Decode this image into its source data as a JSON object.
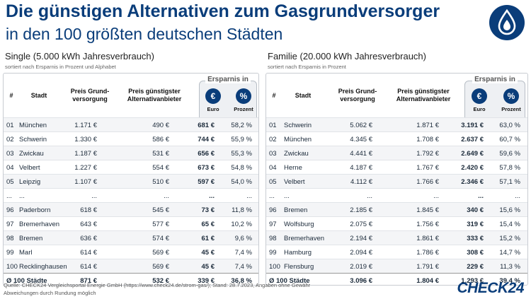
{
  "title_line1": "Die günstigen Alternativen zum Gasgrundversorger",
  "title_line2": "in den 100 größten deutschen Städten",
  "left": {
    "heading": "Single (5.000 kWh Jahresverbrauch)",
    "subheading": "sortiert nach Ersparnis in Prozent und Alphabet",
    "cols": {
      "num": "#",
      "city": "Stadt",
      "grund": "Preis Grund-\nversorgung",
      "alt": "Preis günstigster\nAlternativanbieter",
      "ersparnis": "Ersparnis in",
      "euro": "Euro",
      "prozent": "Prozent"
    },
    "rows": [
      [
        "01",
        "München",
        "1.171 €",
        "490 €",
        "681 €",
        "58,2 %"
      ],
      [
        "02",
        "Schwerin",
        "1.330 €",
        "586 €",
        "744 €",
        "55,9 %"
      ],
      [
        "03",
        "Zwickau",
        "1.187 €",
        "531 €",
        "656 €",
        "55,3 %"
      ],
      [
        "04",
        "Velbert",
        "1.227 €",
        "554 €",
        "673 €",
        "54,8 %"
      ],
      [
        "05",
        "Leipzig",
        "1.107 €",
        "510 €",
        "597 €",
        "54,0 %"
      ],
      [
        "...",
        "...",
        "...",
        "...",
        "...",
        "..."
      ],
      [
        "96",
        "Paderborn",
        "618 €",
        "545 €",
        "73 €",
        "11,8 %"
      ],
      [
        "97",
        "Bremerhaven",
        "643 €",
        "577 €",
        "65 €",
        "10,2 %"
      ],
      [
        "98",
        "Bremen",
        "636 €",
        "574 €",
        "61 €",
        "9,6 %"
      ],
      [
        "99",
        "Marl",
        "614 €",
        "569 €",
        "45 €",
        "7,4 %"
      ],
      [
        "100",
        "Recklinghausen",
        "614 €",
        "569 €",
        "45 €",
        "7,4 %"
      ],
      [
        "Ø 100 Städte",
        "",
        "871 €",
        "532 €",
        "339 €",
        "36,8 %"
      ]
    ]
  },
  "right": {
    "heading": "Familie (20.000 kWh Jahresverbrauch)",
    "subheading": "sortiert nach Ersparnis in Prozent",
    "cols": {
      "num": "#",
      "city": "Stadt",
      "grund": "Preis Grund-\nversorgung",
      "alt": "Preis günstigster\nAlternativanbieter",
      "ersparnis": "Ersparnis in",
      "euro": "Euro",
      "prozent": "Prozent"
    },
    "rows": [
      [
        "01",
        "Schwerin",
        "5.062 €",
        "1.871 €",
        "3.191 €",
        "63,0 %"
      ],
      [
        "02",
        "München",
        "4.345 €",
        "1.708 €",
        "2.637 €",
        "60,7 %"
      ],
      [
        "03",
        "Zwickau",
        "4.441 €",
        "1.792 €",
        "2.649 €",
        "59,6 %"
      ],
      [
        "04",
        "Herne",
        "4.187 €",
        "1.767 €",
        "2.420 €",
        "57,8 %"
      ],
      [
        "05",
        "Velbert",
        "4.112 €",
        "1.766 €",
        "2.346 €",
        "57,1 %"
      ],
      [
        "...",
        "...",
        "...",
        "...",
        "...",
        "..."
      ],
      [
        "96",
        "Bremen",
        "2.185 €",
        "1.845 €",
        "340 €",
        "15,6 %"
      ],
      [
        "97",
        "Wolfsburg",
        "2.075 €",
        "1.756 €",
        "319 €",
        "15,4 %"
      ],
      [
        "98",
        "Bremerhaven",
        "2.194 €",
        "1.861 €",
        "333 €",
        "15,2 %"
      ],
      [
        "99",
        "Hamburg",
        "2.094 €",
        "1.786 €",
        "308 €",
        "14,7 %"
      ],
      [
        "100",
        "Flensburg",
        "2.019 €",
        "1.791 €",
        "229 €",
        "11,3 %"
      ],
      [
        "Ø 100 Städte",
        "",
        "3.096 €",
        "1.804 €",
        "1.293 €",
        "39,4 %"
      ]
    ]
  },
  "badges": {
    "euro": "€",
    "percent": "%"
  },
  "footer_line1": "Quelle: CHECK24 Vergleichsportal Energie GmbH (https://www.check24.de/strom-gas/); Stand: 28.7.2023, Angaben ohne Gewähr",
  "footer_line2": "Abweichungen durch Rundung möglich",
  "brand": "CHECK24",
  "colors": {
    "brand": "#0a3d7a"
  }
}
